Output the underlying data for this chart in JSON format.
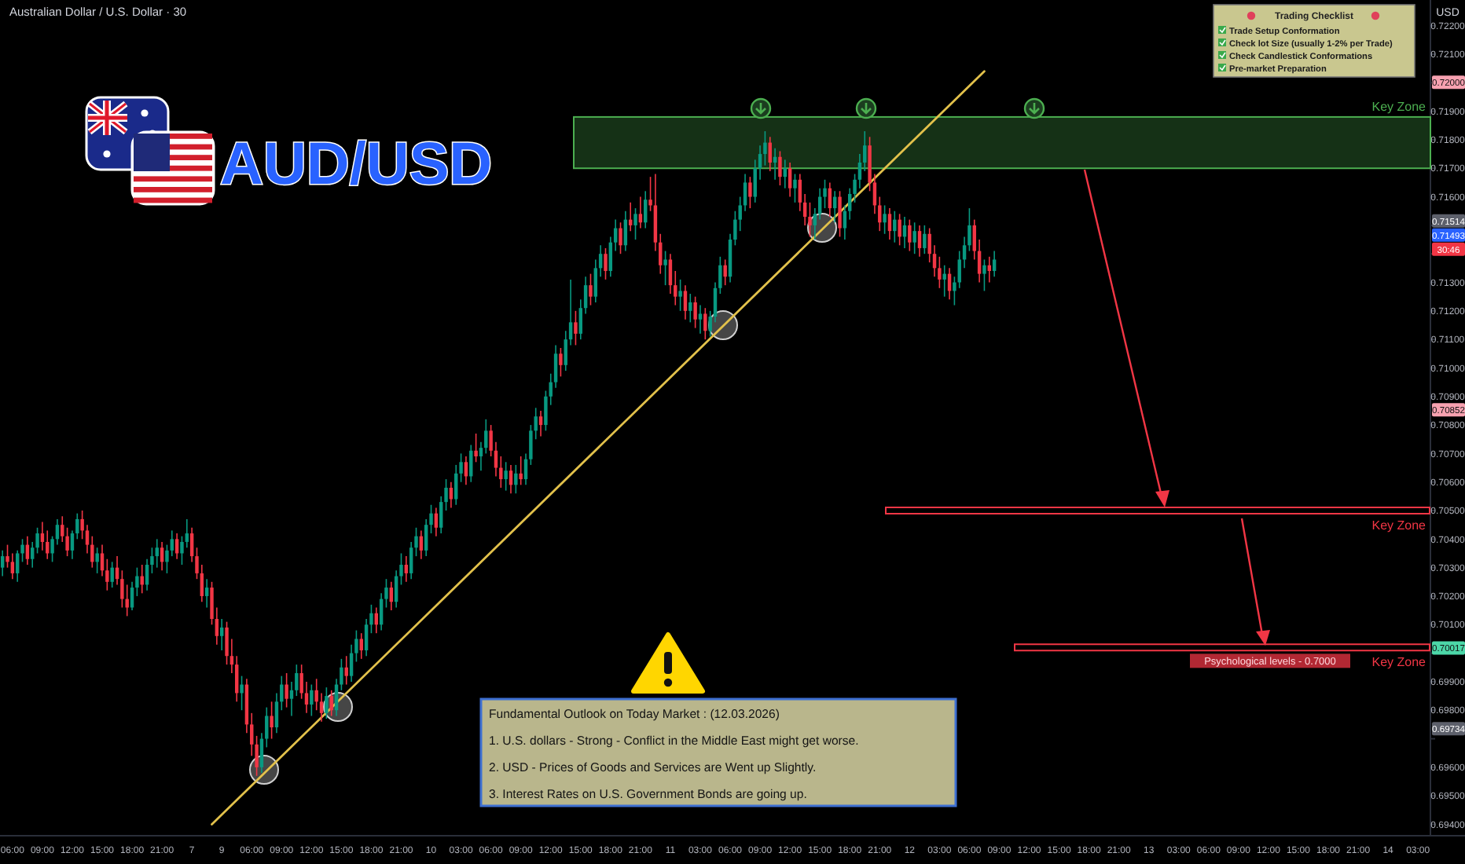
{
  "chart_data": {
    "type": "candlestick",
    "title": "Australian Dollar / U.S. Dollar · 30",
    "subtitle": "AUD/USD",
    "ylabel": "USD",
    "categories": [
      null,
      null,
      "06:00",
      null,
      null,
      null,
      null,
      null,
      "09:00",
      null,
      null,
      null,
      null,
      null,
      "12:00",
      null,
      null,
      null,
      null,
      null,
      "15:00",
      null,
      null,
      null,
      null,
      null,
      "18:00",
      null,
      null,
      null,
      null,
      null,
      "21:00",
      null,
      null,
      null,
      null,
      null,
      "7",
      null,
      null,
      null,
      null,
      null,
      "9",
      null,
      null,
      null,
      null,
      null,
      "06:00",
      null,
      null,
      null,
      null,
      null,
      "09:00",
      null,
      null,
      null,
      null,
      null,
      "12:00",
      null,
      null,
      null,
      null,
      null,
      "15:00",
      null,
      null,
      null,
      null,
      null,
      "18:00",
      null,
      null,
      null,
      null,
      null,
      "21:00",
      null,
      null,
      null,
      null,
      null,
      "10",
      null,
      null,
      null,
      null,
      null,
      "03:00",
      null,
      null,
      null,
      null,
      null,
      "06:00",
      null,
      null,
      null,
      null,
      null,
      "09:00",
      null,
      null,
      null,
      null,
      null,
      "12:00",
      null,
      null,
      null,
      null,
      null,
      "15:00",
      null,
      null,
      null,
      null,
      null,
      "18:00",
      null,
      null,
      null,
      null,
      null,
      "21:00",
      null,
      null,
      null,
      null,
      null,
      "11",
      null,
      null,
      null,
      null,
      null,
      "03:00",
      null,
      null,
      null,
      null,
      null,
      "06:00",
      null,
      null,
      null,
      null,
      null,
      "09:00",
      null,
      null,
      null,
      null,
      null,
      "12:00",
      null,
      null,
      null,
      null,
      null,
      "15:00",
      null,
      null,
      null,
      null,
      null,
      "18:00",
      null,
      null,
      null,
      null,
      null,
      "21:00",
      null,
      null,
      null,
      null,
      null,
      "12",
      null,
      null,
      null,
      null,
      null,
      "03:00",
      null,
      null,
      null,
      null,
      null,
      "06:00",
      null,
      null,
      null,
      null,
      null,
      "09:00",
      null,
      null,
      null,
      null,
      null,
      "12:00",
      null,
      null,
      null,
      null,
      null,
      "15:00",
      null,
      null,
      null,
      null,
      null,
      "18:00",
      null,
      null,
      null,
      null,
      null,
      "21:00",
      null,
      null,
      null,
      null,
      null,
      "13",
      null,
      null,
      null,
      null,
      null,
      "03:00",
      null,
      null,
      null,
      null,
      null,
      "06:00",
      null,
      null,
      null,
      null,
      null,
      "09:00",
      null,
      null,
      null,
      null,
      null,
      "12:00",
      null,
      null,
      null,
      null,
      null,
      "15:00",
      null,
      null,
      null,
      null,
      null,
      "18:00",
      null,
      null,
      null,
      null,
      null,
      "21:00",
      null,
      null,
      null,
      null,
      null,
      "14",
      null,
      null,
      null,
      null,
      null,
      "03:00",
      null,
      null
    ],
    "ohlc": [
      [
        0.703,
        0.7036,
        0.7027,
        0.7034
      ],
      [
        0.7034,
        0.7038,
        0.703,
        0.7032
      ],
      [
        0.7032,
        0.7035,
        0.7026,
        0.7028
      ],
      [
        0.7028,
        0.7036,
        0.7025,
        0.7035
      ],
      [
        0.7035,
        0.704,
        0.7032,
        0.7038
      ],
      [
        0.7038,
        0.7041,
        0.7031,
        0.7033
      ],
      [
        0.7033,
        0.7039,
        0.703,
        0.7037
      ],
      [
        0.7037,
        0.7044,
        0.7035,
        0.7042
      ],
      [
        0.7042,
        0.7046,
        0.7036,
        0.7039
      ],
      [
        0.7039,
        0.7043,
        0.7033,
        0.7035
      ],
      [
        0.7035,
        0.7041,
        0.7032,
        0.704
      ],
      [
        0.704,
        0.7047,
        0.7038,
        0.7045
      ],
      [
        0.7045,
        0.7048,
        0.7039,
        0.7041
      ],
      [
        0.7041,
        0.7044,
        0.7034,
        0.7036
      ],
      [
        0.7036,
        0.7043,
        0.7033,
        0.7042
      ],
      [
        0.7042,
        0.7049,
        0.704,
        0.7047
      ],
      [
        0.7047,
        0.705,
        0.704,
        0.7043
      ],
      [
        0.7043,
        0.7045,
        0.7035,
        0.7038
      ],
      [
        0.7038,
        0.7041,
        0.703,
        0.7032
      ],
      [
        0.7032,
        0.7037,
        0.7028,
        0.7035
      ],
      [
        0.7035,
        0.7038,
        0.7027,
        0.7029
      ],
      [
        0.7029,
        0.7033,
        0.7022,
        0.7025
      ],
      [
        0.7025,
        0.7032,
        0.7023,
        0.703
      ],
      [
        0.703,
        0.7034,
        0.7024,
        0.7026
      ],
      [
        0.7026,
        0.7029,
        0.7016,
        0.7019
      ],
      [
        0.7019,
        0.7024,
        0.7013,
        0.7016
      ],
      [
        0.7016,
        0.7025,
        0.7015,
        0.7023
      ],
      [
        0.7023,
        0.703,
        0.702,
        0.7027
      ],
      [
        0.7027,
        0.7031,
        0.7021,
        0.7024
      ],
      [
        0.7024,
        0.7033,
        0.7022,
        0.7031
      ],
      [
        0.7031,
        0.7037,
        0.7028,
        0.7034
      ],
      [
        0.7034,
        0.704,
        0.703,
        0.7037
      ],
      [
        0.7037,
        0.7039,
        0.7029,
        0.7032
      ],
      [
        0.7032,
        0.7038,
        0.7028,
        0.7036
      ],
      [
        0.7036,
        0.7043,
        0.7034,
        0.704
      ],
      [
        0.704,
        0.7042,
        0.7033,
        0.7035
      ],
      [
        0.7035,
        0.7041,
        0.7031,
        0.7039
      ],
      [
        0.7039,
        0.7047,
        0.7037,
        0.7042
      ],
      [
        0.7042,
        0.7044,
        0.7032,
        0.7034
      ],
      [
        0.7034,
        0.7037,
        0.7026,
        0.7028
      ],
      [
        0.7028,
        0.7031,
        0.7018,
        0.702
      ],
      [
        0.702,
        0.7026,
        0.7016,
        0.7023
      ],
      [
        0.7023,
        0.7025,
        0.701,
        0.7012
      ],
      [
        0.7012,
        0.7016,
        0.7003,
        0.7006
      ],
      [
        0.7006,
        0.7012,
        0.7001,
        0.7009
      ],
      [
        0.7009,
        0.7011,
        0.6996,
        0.6999
      ],
      [
        0.6999,
        0.7005,
        0.6993,
        0.6996
      ],
      [
        0.6996,
        0.6999,
        0.6983,
        0.6986
      ],
      [
        0.6986,
        0.6992,
        0.698,
        0.6989
      ],
      [
        0.6989,
        0.6991,
        0.6972,
        0.6975
      ],
      [
        0.6975,
        0.6979,
        0.6964,
        0.6968
      ],
      [
        0.6968,
        0.6971,
        0.6957,
        0.696
      ],
      [
        0.696,
        0.6972,
        0.6958,
        0.697
      ],
      [
        0.697,
        0.6981,
        0.6967,
        0.6978
      ],
      [
        0.6978,
        0.6983,
        0.697,
        0.6974
      ],
      [
        0.6974,
        0.6986,
        0.6972,
        0.6983
      ],
      [
        0.6983,
        0.6992,
        0.698,
        0.6989
      ],
      [
        0.6989,
        0.6993,
        0.6981,
        0.6984
      ],
      [
        0.6984,
        0.699,
        0.6978,
        0.6987
      ],
      [
        0.6987,
        0.6996,
        0.6985,
        0.6993
      ],
      [
        0.6993,
        0.6996,
        0.6984,
        0.6986
      ],
      [
        0.6986,
        0.699,
        0.6979,
        0.6982
      ],
      [
        0.6982,
        0.6989,
        0.6978,
        0.6987
      ],
      [
        0.6987,
        0.6991,
        0.698,
        0.6983
      ],
      [
        0.6983,
        0.6986,
        0.6976,
        0.6979
      ],
      [
        0.6979,
        0.6988,
        0.6977,
        0.6985
      ],
      [
        0.6985,
        0.6987,
        0.6978,
        0.698
      ],
      [
        0.698,
        0.6991,
        0.6978,
        0.6989
      ],
      [
        0.6989,
        0.6998,
        0.6987,
        0.6995
      ],
      [
        0.6995,
        0.6999,
        0.6989,
        0.6992
      ],
      [
        0.6992,
        0.7003,
        0.699,
        0.7
      ],
      [
        0.7,
        0.7008,
        0.6997,
        0.7005
      ],
      [
        0.7005,
        0.7007,
        0.6998,
        0.7001
      ],
      [
        0.7001,
        0.7012,
        0.6999,
        0.701
      ],
      [
        0.701,
        0.7017,
        0.7007,
        0.7014
      ],
      [
        0.7014,
        0.7016,
        0.7007,
        0.701
      ],
      [
        0.701,
        0.7021,
        0.7008,
        0.7019
      ],
      [
        0.7019,
        0.7026,
        0.7016,
        0.7023
      ],
      [
        0.7023,
        0.7025,
        0.7015,
        0.7018
      ],
      [
        0.7018,
        0.7029,
        0.7016,
        0.7027
      ],
      [
        0.7027,
        0.7035,
        0.7024,
        0.7031
      ],
      [
        0.7031,
        0.7034,
        0.7025,
        0.7028
      ],
      [
        0.7028,
        0.7039,
        0.7026,
        0.7037
      ],
      [
        0.7037,
        0.7044,
        0.7034,
        0.7041
      ],
      [
        0.7041,
        0.7043,
        0.7033,
        0.7036
      ],
      [
        0.7036,
        0.7047,
        0.7034,
        0.7045
      ],
      [
        0.7045,
        0.7052,
        0.7042,
        0.7049
      ],
      [
        0.7049,
        0.7051,
        0.7041,
        0.7044
      ],
      [
        0.7044,
        0.7055,
        0.7042,
        0.7053
      ],
      [
        0.7053,
        0.7061,
        0.705,
        0.7058
      ],
      [
        0.7058,
        0.706,
        0.7051,
        0.7054
      ],
      [
        0.7054,
        0.7066,
        0.7052,
        0.7063
      ],
      [
        0.7063,
        0.707,
        0.706,
        0.7067
      ],
      [
        0.7067,
        0.7069,
        0.7059,
        0.7062
      ],
      [
        0.7062,
        0.7073,
        0.706,
        0.7071
      ],
      [
        0.7071,
        0.7077,
        0.7067,
        0.7069
      ],
      [
        0.7069,
        0.7074,
        0.7064,
        0.7072
      ],
      [
        0.7072,
        0.7082,
        0.707,
        0.7078
      ],
      [
        0.7078,
        0.708,
        0.7069,
        0.7071
      ],
      [
        0.7071,
        0.7074,
        0.7062,
        0.7065
      ],
      [
        0.7065,
        0.7069,
        0.7058,
        0.7061
      ],
      [
        0.7061,
        0.7067,
        0.7057,
        0.7064
      ],
      [
        0.7064,
        0.7066,
        0.7056,
        0.7059
      ],
      [
        0.7059,
        0.7066,
        0.7056,
        0.7063
      ],
      [
        0.7063,
        0.7069,
        0.7059,
        0.7061
      ],
      [
        0.7061,
        0.707,
        0.7059,
        0.7068
      ],
      [
        0.7068,
        0.708,
        0.7066,
        0.7078
      ],
      [
        0.7078,
        0.7086,
        0.7075,
        0.7083
      ],
      [
        0.7083,
        0.7085,
        0.7076,
        0.708
      ],
      [
        0.708,
        0.7092,
        0.7078,
        0.709
      ],
      [
        0.709,
        0.7098,
        0.7087,
        0.7095
      ],
      [
        0.7095,
        0.7108,
        0.7093,
        0.7105
      ],
      [
        0.7105,
        0.7107,
        0.7097,
        0.7101
      ],
      [
        0.7101,
        0.7113,
        0.7099,
        0.711
      ],
      [
        0.711,
        0.7131,
        0.7108,
        0.7116
      ],
      [
        0.7116,
        0.712,
        0.7108,
        0.7112
      ],
      [
        0.7112,
        0.7124,
        0.711,
        0.7121
      ],
      [
        0.7121,
        0.7132,
        0.7119,
        0.7129
      ],
      [
        0.7129,
        0.7133,
        0.7122,
        0.7125
      ],
      [
        0.7125,
        0.7138,
        0.7123,
        0.7135
      ],
      [
        0.7135,
        0.7143,
        0.7132,
        0.714
      ],
      [
        0.714,
        0.7142,
        0.7131,
        0.7134
      ],
      [
        0.7134,
        0.7146,
        0.7132,
        0.7144
      ],
      [
        0.7144,
        0.7152,
        0.7141,
        0.7149
      ],
      [
        0.7149,
        0.7151,
        0.714,
        0.7143
      ],
      [
        0.7143,
        0.7155,
        0.7141,
        0.7152
      ],
      [
        0.7152,
        0.7158,
        0.7148,
        0.715
      ],
      [
        0.715,
        0.7156,
        0.7145,
        0.7154
      ],
      [
        0.7154,
        0.716,
        0.7149,
        0.7151
      ],
      [
        0.7151,
        0.7162,
        0.7149,
        0.7159
      ],
      [
        0.7159,
        0.7167,
        0.7155,
        0.7157
      ],
      [
        0.7157,
        0.7168,
        0.7141,
        0.7144
      ],
      [
        0.7144,
        0.7147,
        0.7133,
        0.7136
      ],
      [
        0.7136,
        0.7141,
        0.7129,
        0.7138
      ],
      [
        0.7138,
        0.714,
        0.7126,
        0.7129
      ],
      [
        0.7129,
        0.7134,
        0.7122,
        0.7125
      ],
      [
        0.7125,
        0.7131,
        0.712,
        0.7127
      ],
      [
        0.7127,
        0.7129,
        0.7117,
        0.712
      ],
      [
        0.712,
        0.7126,
        0.7116,
        0.7123
      ],
      [
        0.7123,
        0.7125,
        0.7114,
        0.7117
      ],
      [
        0.7117,
        0.7122,
        0.7112,
        0.7119
      ],
      [
        0.7119,
        0.7121,
        0.711,
        0.7113
      ],
      [
        0.7113,
        0.712,
        0.7111,
        0.7118
      ],
      [
        0.7118,
        0.713,
        0.7116,
        0.7128
      ],
      [
        0.7128,
        0.7139,
        0.7126,
        0.7136
      ],
      [
        0.7136,
        0.7138,
        0.7129,
        0.7132
      ],
      [
        0.7132,
        0.7147,
        0.713,
        0.7145
      ],
      [
        0.7145,
        0.7155,
        0.7143,
        0.7152
      ],
      [
        0.7152,
        0.716,
        0.7148,
        0.7157
      ],
      [
        0.7157,
        0.7168,
        0.7155,
        0.7165
      ],
      [
        0.7165,
        0.7167,
        0.7156,
        0.716
      ],
      [
        0.716,
        0.7173,
        0.7158,
        0.717
      ],
      [
        0.717,
        0.7178,
        0.7166,
        0.7175
      ],
      [
        0.7175,
        0.7183,
        0.7171,
        0.7179
      ],
      [
        0.7179,
        0.7181,
        0.7169,
        0.7172
      ],
      [
        0.7172,
        0.7177,
        0.7166,
        0.7174
      ],
      [
        0.7174,
        0.7176,
        0.7164,
        0.7167
      ],
      [
        0.7167,
        0.7173,
        0.7163,
        0.717
      ],
      [
        0.717,
        0.7172,
        0.716,
        0.7163
      ],
      [
        0.7163,
        0.7168,
        0.7158,
        0.7166
      ],
      [
        0.7166,
        0.7168,
        0.7155,
        0.7158
      ],
      [
        0.7158,
        0.7161,
        0.715,
        0.7153
      ],
      [
        0.7153,
        0.7158,
        0.7146,
        0.715
      ],
      [
        0.715,
        0.7156,
        0.7145,
        0.7154
      ],
      [
        0.7154,
        0.7163,
        0.7152,
        0.716
      ],
      [
        0.716,
        0.7166,
        0.7156,
        0.7163
      ],
      [
        0.7163,
        0.7165,
        0.7153,
        0.7156
      ],
      [
        0.7156,
        0.7162,
        0.7151,
        0.716
      ],
      [
        0.716,
        0.7162,
        0.7146,
        0.7149
      ],
      [
        0.7149,
        0.7157,
        0.7145,
        0.7155
      ],
      [
        0.7155,
        0.7163,
        0.7152,
        0.7161
      ],
      [
        0.7161,
        0.7168,
        0.7158,
        0.7166
      ],
      [
        0.7166,
        0.7175,
        0.7163,
        0.7172
      ],
      [
        0.7172,
        0.7183,
        0.7169,
        0.7178
      ],
      [
        0.7178,
        0.7181,
        0.7162,
        0.7165
      ],
      [
        0.7165,
        0.7168,
        0.7154,
        0.7157
      ],
      [
        0.7157,
        0.716,
        0.7148,
        0.7151
      ],
      [
        0.7151,
        0.7157,
        0.7147,
        0.7154
      ],
      [
        0.7154,
        0.7156,
        0.7145,
        0.7148
      ],
      [
        0.7148,
        0.7155,
        0.7144,
        0.7152
      ],
      [
        0.7152,
        0.7154,
        0.7143,
        0.7146
      ],
      [
        0.7146,
        0.7153,
        0.7142,
        0.715
      ],
      [
        0.715,
        0.7152,
        0.7141,
        0.7144
      ],
      [
        0.7144,
        0.7151,
        0.714,
        0.7148
      ],
      [
        0.7148,
        0.715,
        0.7139,
        0.7142
      ],
      [
        0.7142,
        0.715,
        0.714,
        0.7147
      ],
      [
        0.7147,
        0.7149,
        0.7137,
        0.714
      ],
      [
        0.714,
        0.7143,
        0.7132,
        0.7135
      ],
      [
        0.7135,
        0.7139,
        0.7128,
        0.7131
      ],
      [
        0.7131,
        0.7136,
        0.7125,
        0.7133
      ],
      [
        0.7133,
        0.7135,
        0.7124,
        0.7127
      ],
      [
        0.7127,
        0.7132,
        0.7122,
        0.713
      ],
      [
        0.713,
        0.7141,
        0.7128,
        0.7138
      ],
      [
        0.7138,
        0.7146,
        0.7135,
        0.7143
      ],
      [
        0.7143,
        0.7156,
        0.7141,
        0.715
      ],
      [
        0.715,
        0.7152,
        0.7138,
        0.7141
      ],
      [
        0.7141,
        0.7145,
        0.713,
        0.7133
      ],
      [
        0.7133,
        0.7138,
        0.7127,
        0.7136
      ],
      [
        0.7136,
        0.7139,
        0.713,
        0.7134
      ],
      [
        0.7134,
        0.7141,
        0.7132,
        0.7138
      ],
      null,
      null,
      null,
      null,
      null,
      null,
      null,
      null,
      null,
      null,
      null,
      null,
      null,
      null,
      null,
      null,
      null,
      null,
      null,
      null,
      null,
      null,
      null,
      null,
      null,
      null,
      null,
      null,
      null,
      null,
      null,
      null,
      null,
      null,
      null,
      null,
      null,
      null,
      null,
      null,
      null,
      null,
      null,
      null,
      null,
      null,
      null,
      null,
      null,
      null,
      null,
      null,
      null,
      null,
      null,
      null,
      null,
      null,
      null,
      null,
      null,
      null,
      null,
      null,
      null,
      null,
      null,
      null,
      null,
      null,
      null,
      null,
      null,
      null,
      null,
      null,
      null,
      null,
      null,
      null,
      null,
      null,
      null,
      null,
      null,
      null,
      null
    ],
    "series": [
      {
        "type": "line",
        "color": "#e2c14b",
        "values": [
          null,
          null,
          null,
          null,
          null,
          null,
          null,
          null,
          null,
          null,
          null,
          null,
          null,
          null,
          null,
          null,
          null,
          null,
          null,
          null,
          null,
          null,
          null,
          null,
          null,
          null,
          null,
          null,
          null,
          null,
          null,
          null,
          null,
          null,
          null,
          null,
          null,
          null,
          null,
          null,
          null,
          null,
          0.694,
          null,
          null,
          null,
          null,
          null,
          null,
          null,
          null,
          null,
          null,
          null,
          null,
          null,
          null,
          null,
          null,
          null,
          null,
          null,
          null,
          null,
          null,
          null,
          null,
          null,
          null,
          null,
          null,
          null,
          null,
          null,
          null,
          null,
          null,
          null,
          null,
          null,
          null,
          null,
          null,
          null,
          null,
          null,
          null,
          null,
          null,
          null,
          null,
          null,
          null,
          null,
          null,
          null,
          null,
          null,
          null,
          null,
          null,
          null,
          null,
          null,
          null,
          null,
          null,
          null,
          null,
          null,
          null,
          null,
          null,
          null,
          null,
          null,
          null,
          null,
          null,
          null,
          null,
          null,
          null,
          null,
          null,
          null,
          null,
          null,
          null,
          null,
          null,
          null,
          null,
          null,
          null,
          null,
          null,
          null,
          null,
          null,
          null,
          null,
          null,
          null,
          null,
          null,
          null,
          null,
          null,
          null,
          null,
          null,
          null,
          null,
          null,
          null,
          null,
          null,
          null,
          null,
          null,
          null,
          null,
          null,
          null,
          null,
          null,
          null,
          null,
          null,
          null,
          null,
          null,
          null,
          null,
          null,
          null,
          null,
          null,
          null,
          null,
          null,
          null,
          null,
          null,
          null,
          null,
          null,
          null,
          null,
          null,
          null,
          null,
          null,
          null,
          null,
          null,
          0.7204,
          null,
          null,
          null,
          null,
          null,
          null,
          null,
          null,
          null,
          null,
          null,
          null,
          null,
          null,
          null,
          null,
          null,
          null,
          null,
          null,
          null,
          null,
          null,
          null,
          null,
          null,
          null,
          null,
          null,
          null,
          null,
          null,
          null,
          null,
          null,
          null,
          null,
          null,
          null,
          null,
          null,
          null,
          null,
          null,
          null,
          null,
          null,
          null,
          null,
          null,
          null,
          null,
          null,
          null,
          null,
          null,
          null,
          null,
          null,
          null,
          null,
          null,
          null,
          null,
          null,
          null,
          null,
          null,
          null,
          null,
          null,
          null,
          null,
          null,
          null,
          null,
          null,
          null,
          null,
          null,
          null,
          null,
          null,
          null,
          null,
          null,
          null,
          null,
          null
        ]
      }
    ],
    "ylim": [
      0.6936,
      0.7229
    ],
    "yticks": [
      {
        "value": 0.694,
        "label": "0.69400"
      },
      {
        "value": 0.695,
        "label": "0.69500"
      },
      {
        "value": 0.696,
        "label": "0.69600"
      },
      {
        "value": 0.697,
        "label": null
      },
      {
        "value": 0.698,
        "label": "0.69800"
      },
      {
        "value": 0.699,
        "label": "0.69900"
      },
      {
        "value": 0.7,
        "label": null
      },
      {
        "value": 0.701,
        "label": "0.70100"
      },
      {
        "value": 0.702,
        "label": "0.70200"
      },
      {
        "value": 0.703,
        "label": "0.70300"
      },
      {
        "value": 0.704,
        "label": "0.70400"
      },
      {
        "value": 0.705,
        "label": "0.70500"
      },
      {
        "value": 0.706,
        "label": "0.70600"
      },
      {
        "value": 0.707,
        "label": "0.70700"
      },
      {
        "value": 0.708,
        "label": "0.70800"
      },
      {
        "value": 0.709,
        "label": "0.70900"
      },
      {
        "value": 0.71,
        "label": "0.71000"
      },
      {
        "value": 0.711,
        "label": "0.71100"
      },
      {
        "value": 0.712,
        "label": "0.71200"
      },
      {
        "value": 0.713,
        "label": "0.71300"
      },
      {
        "value": 0.714,
        "label": null
      },
      {
        "value": 0.715,
        "label": null
      },
      {
        "value": 0.716,
        "label": "0.71600"
      },
      {
        "value": 0.717,
        "label": "0.71700"
      },
      {
        "value": 0.718,
        "label": "0.71800"
      },
      {
        "value": 0.719,
        "label": "0.71900"
      },
      {
        "value": 0.72,
        "label": null
      },
      {
        "value": 0.721,
        "label": "0.72100"
      },
      {
        "value": 0.722,
        "label": "0.72200"
      }
    ],
    "bands": [
      {
        "axis": "y",
        "from": 0.717,
        "to": 0.7188,
        "label": "Key Zone",
        "color": "#4caf50"
      }
    ],
    "ref_lines": [
      {
        "axis": "y",
        "value": 0.705,
        "label": "Key Zone",
        "color": "#f23645"
      },
      {
        "axis": "y",
        "value": 0.7002,
        "label": "Key Zone",
        "color": "#f23645"
      }
    ],
    "annotations": [
      "Trading Checklist",
      "Trade Setup Conformation",
      "Check lot Size (usually 1-2% per Trade)",
      "Check Candlestick Conformations",
      "Pre-market Preparation",
      "Fundamental Outlook on Today Market : (12.03.2026)",
      "1. U.S. dollars - Strong - Conflict in the Middle East might get worse.",
      "2. USD - Prices of Goods and Services are Went up Slightly.",
      "3. Interest Rates on U.S. Government Bonds are going up.",
      "Psychological levels - 0.7000",
      {
        "text": "0.72000",
        "y": 0.72
      },
      {
        "text": "0.71514",
        "y": 0.71514
      },
      "0.71493",
      "30:46",
      {
        "text": "0.70852",
        "y": 0.70852
      },
      {
        "text": "0.70017",
        "y": 0.70017
      },
      {
        "text": "0.69734",
        "y": 0.69734
      }
    ]
  }
}
